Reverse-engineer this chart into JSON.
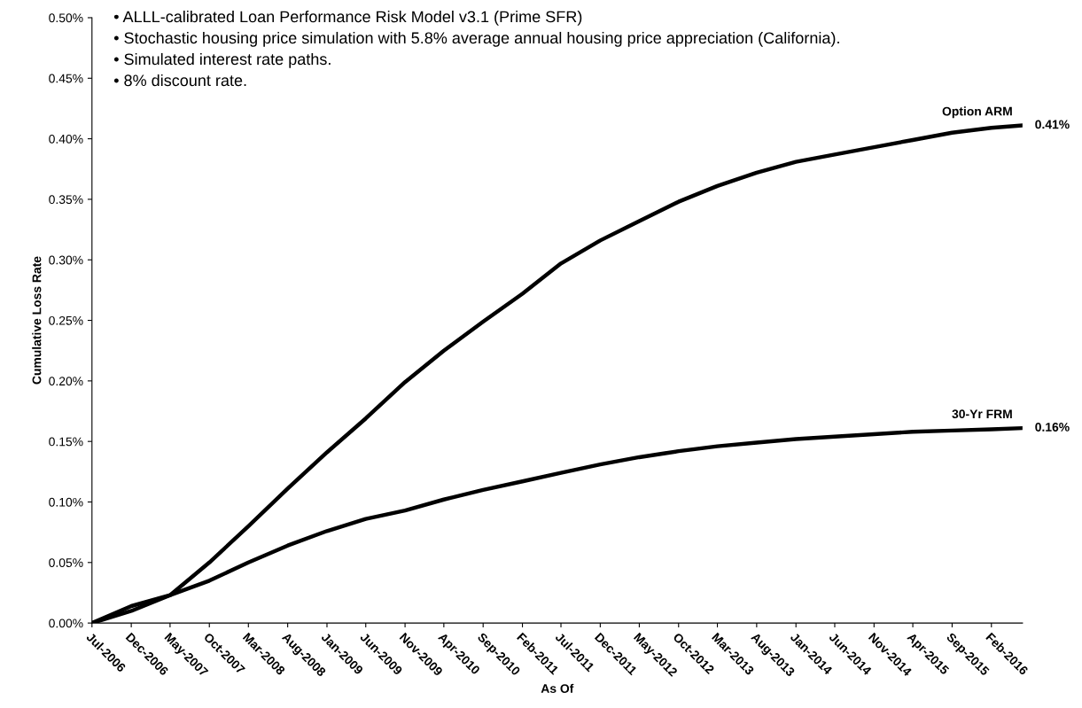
{
  "chart_data": {
    "type": "line",
    "xlabel": "As Of",
    "ylabel": "Cumulative Loss Rate",
    "annotations": [
      "• ALLL-calibrated Loan Performance Risk Model v3.1 (Prime SFR)",
      "• Stochastic housing price simulation with 5.8% average annual housing price appreciation (California).",
      "• Simulated interest rate paths.",
      "• 8% discount rate."
    ],
    "x": [
      "2006-07",
      "2006-12",
      "2007-05",
      "2007-10",
      "2008-03",
      "2008-08",
      "2009-01",
      "2009-06",
      "2009-11",
      "2010-04",
      "2010-09",
      "2011-02",
      "2011-07",
      "2011-12",
      "2012-05",
      "2012-10",
      "2013-03",
      "2013-08",
      "2014-01",
      "2014-06",
      "2014-11",
      "2015-04",
      "2015-09",
      "2016-02",
      "2016-06"
    ],
    "series": [
      {
        "name": "Option ARM",
        "color": "#000000",
        "values": [
          0,
          0.01,
          0.023,
          0.05,
          0.08,
          0.111,
          0.141,
          0.169,
          0.199,
          0.225,
          0.249,
          0.272,
          0.297,
          0.316,
          0.332,
          0.348,
          0.361,
          0.372,
          0.381,
          0.387,
          0.393,
          0.399,
          0.405,
          0.409,
          0.411
        ],
        "value_labels": [
          null,
          null,
          null,
          null,
          null,
          null,
          null,
          null,
          null,
          null,
          null,
          null,
          null,
          null,
          null,
          null,
          null,
          null,
          null,
          null,
          null,
          null,
          null,
          null,
          "0.41%"
        ]
      },
      {
        "name": "30-Yr FRM",
        "color": "#000000",
        "values": [
          0,
          0.014,
          0.023,
          0.035,
          0.05,
          0.064,
          0.076,
          0.086,
          0.093,
          0.102,
          0.11,
          0.117,
          0.124,
          0.131,
          0.137,
          0.142,
          0.146,
          0.149,
          0.152,
          0.154,
          0.156,
          0.158,
          0.159,
          0.16,
          0.161
        ],
        "value_labels": [
          null,
          null,
          null,
          null,
          null,
          null,
          null,
          null,
          null,
          null,
          null,
          null,
          null,
          null,
          null,
          null,
          null,
          null,
          null,
          null,
          null,
          null,
          null,
          null,
          "0.16%"
        ]
      }
    ],
    "xlim": [
      "2006-07",
      "2016-06"
    ],
    "xticks": [
      {
        "value": "2006-07",
        "label": "Jul-2006"
      },
      {
        "value": "2006-12",
        "label": "Dec-2006"
      },
      {
        "value": "2007-05",
        "label": "May-2007"
      },
      {
        "value": "2007-10",
        "label": "Oct-2007"
      },
      {
        "value": "2008-03",
        "label": "Mar-2008"
      },
      {
        "value": "2008-08",
        "label": "Aug-2008"
      },
      {
        "value": "2009-01",
        "label": "Jan-2009"
      },
      {
        "value": "2009-06",
        "label": "Jun-2009"
      },
      {
        "value": "2009-11",
        "label": "Nov-2009"
      },
      {
        "value": "2010-04",
        "label": "Apr-2010"
      },
      {
        "value": "2010-09",
        "label": "Sep-2010"
      },
      {
        "value": "2011-02",
        "label": "Feb-2011"
      },
      {
        "value": "2011-07",
        "label": "Jul-2011"
      },
      {
        "value": "2011-12",
        "label": "Dec-2011"
      },
      {
        "value": "2012-05",
        "label": "May-2012"
      },
      {
        "value": "2012-10",
        "label": "Oct-2012"
      },
      {
        "value": "2013-03",
        "label": "Mar-2013"
      },
      {
        "value": "2013-08",
        "label": "Aug-2013"
      },
      {
        "value": "2014-01",
        "label": "Jan-2014"
      },
      {
        "value": "2014-06",
        "label": "Jun-2014"
      },
      {
        "value": "2014-11",
        "label": "Nov-2014"
      },
      {
        "value": "2015-04",
        "label": "Apr-2015"
      },
      {
        "value": "2015-09",
        "label": "Sep-2015"
      },
      {
        "value": "2016-02",
        "label": "Feb-2016"
      }
    ],
    "ylim": [
      0,
      0.5
    ],
    "yticks": [
      {
        "value": 0,
        "label": "0.00%"
      },
      {
        "value": 0.05,
        "label": "0.05%"
      },
      {
        "value": 0.1,
        "label": "0.10%"
      },
      {
        "value": 0.15,
        "label": "0.15%"
      },
      {
        "value": 0.2,
        "label": "0.20%"
      },
      {
        "value": 0.25,
        "label": "0.25%"
      },
      {
        "value": 0.3,
        "label": "0.30%"
      },
      {
        "value": 0.35,
        "label": "0.35%"
      },
      {
        "value": 0.4,
        "label": "0.40%"
      },
      {
        "value": 0.45,
        "label": "0.45%"
      },
      {
        "value": 0.5,
        "label": "0.50%"
      }
    ],
    "grid": false,
    "legend": false,
    "marker": "none",
    "line_style": "solid"
  }
}
